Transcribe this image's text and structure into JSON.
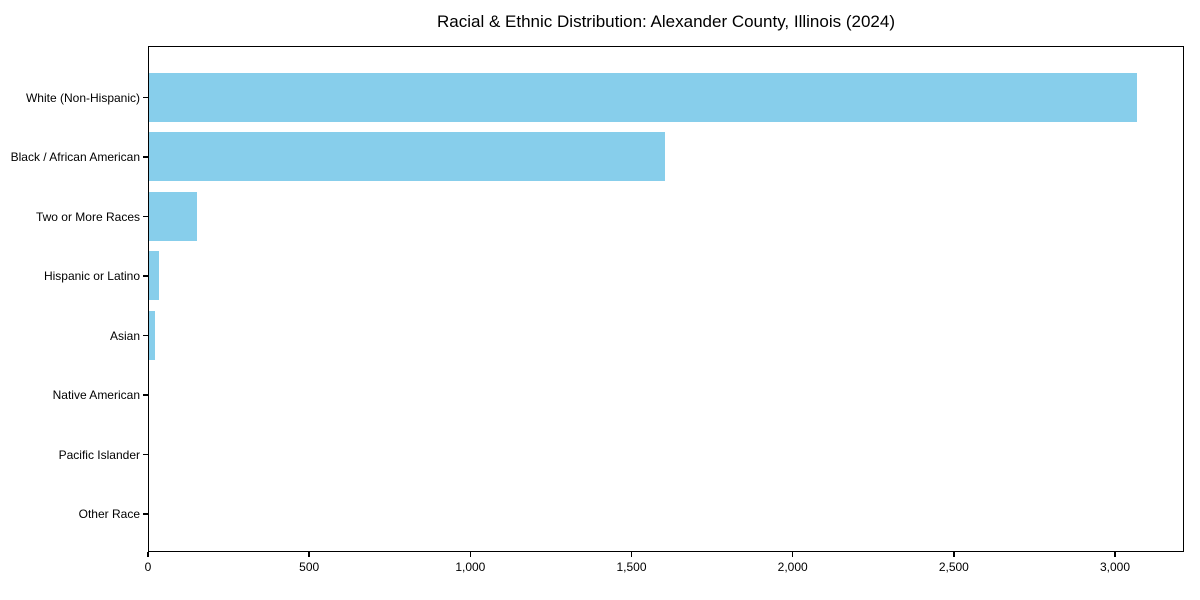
{
  "chart_data": {
    "type": "bar",
    "orientation": "horizontal",
    "title": "Racial & Ethnic Distribution: Alexander County, Illinois (2024)",
    "xlabel": "",
    "ylabel": "",
    "categories": [
      "White (Non-Hispanic)",
      "Black / African American",
      "Two or More Races",
      "Hispanic or Latino",
      "Asian",
      "Native American",
      "Pacific Islander",
      "Other Race"
    ],
    "values": [
      3065,
      1600,
      150,
      30,
      20,
      0,
      0,
      0
    ],
    "bar_color": "#87CEEB",
    "xlim": [
      0,
      3214
    ],
    "xticks": {
      "values": [
        0,
        500,
        1000,
        1500,
        2000,
        2500,
        3000
      ],
      "labels": [
        "0",
        "500",
        "1,000",
        "1,500",
        "2,000",
        "2,500",
        "3,000"
      ]
    },
    "grid": false,
    "legend": null,
    "background_color": "#ffffff",
    "text_color": "#000000",
    "spine_color": "#000000"
  }
}
